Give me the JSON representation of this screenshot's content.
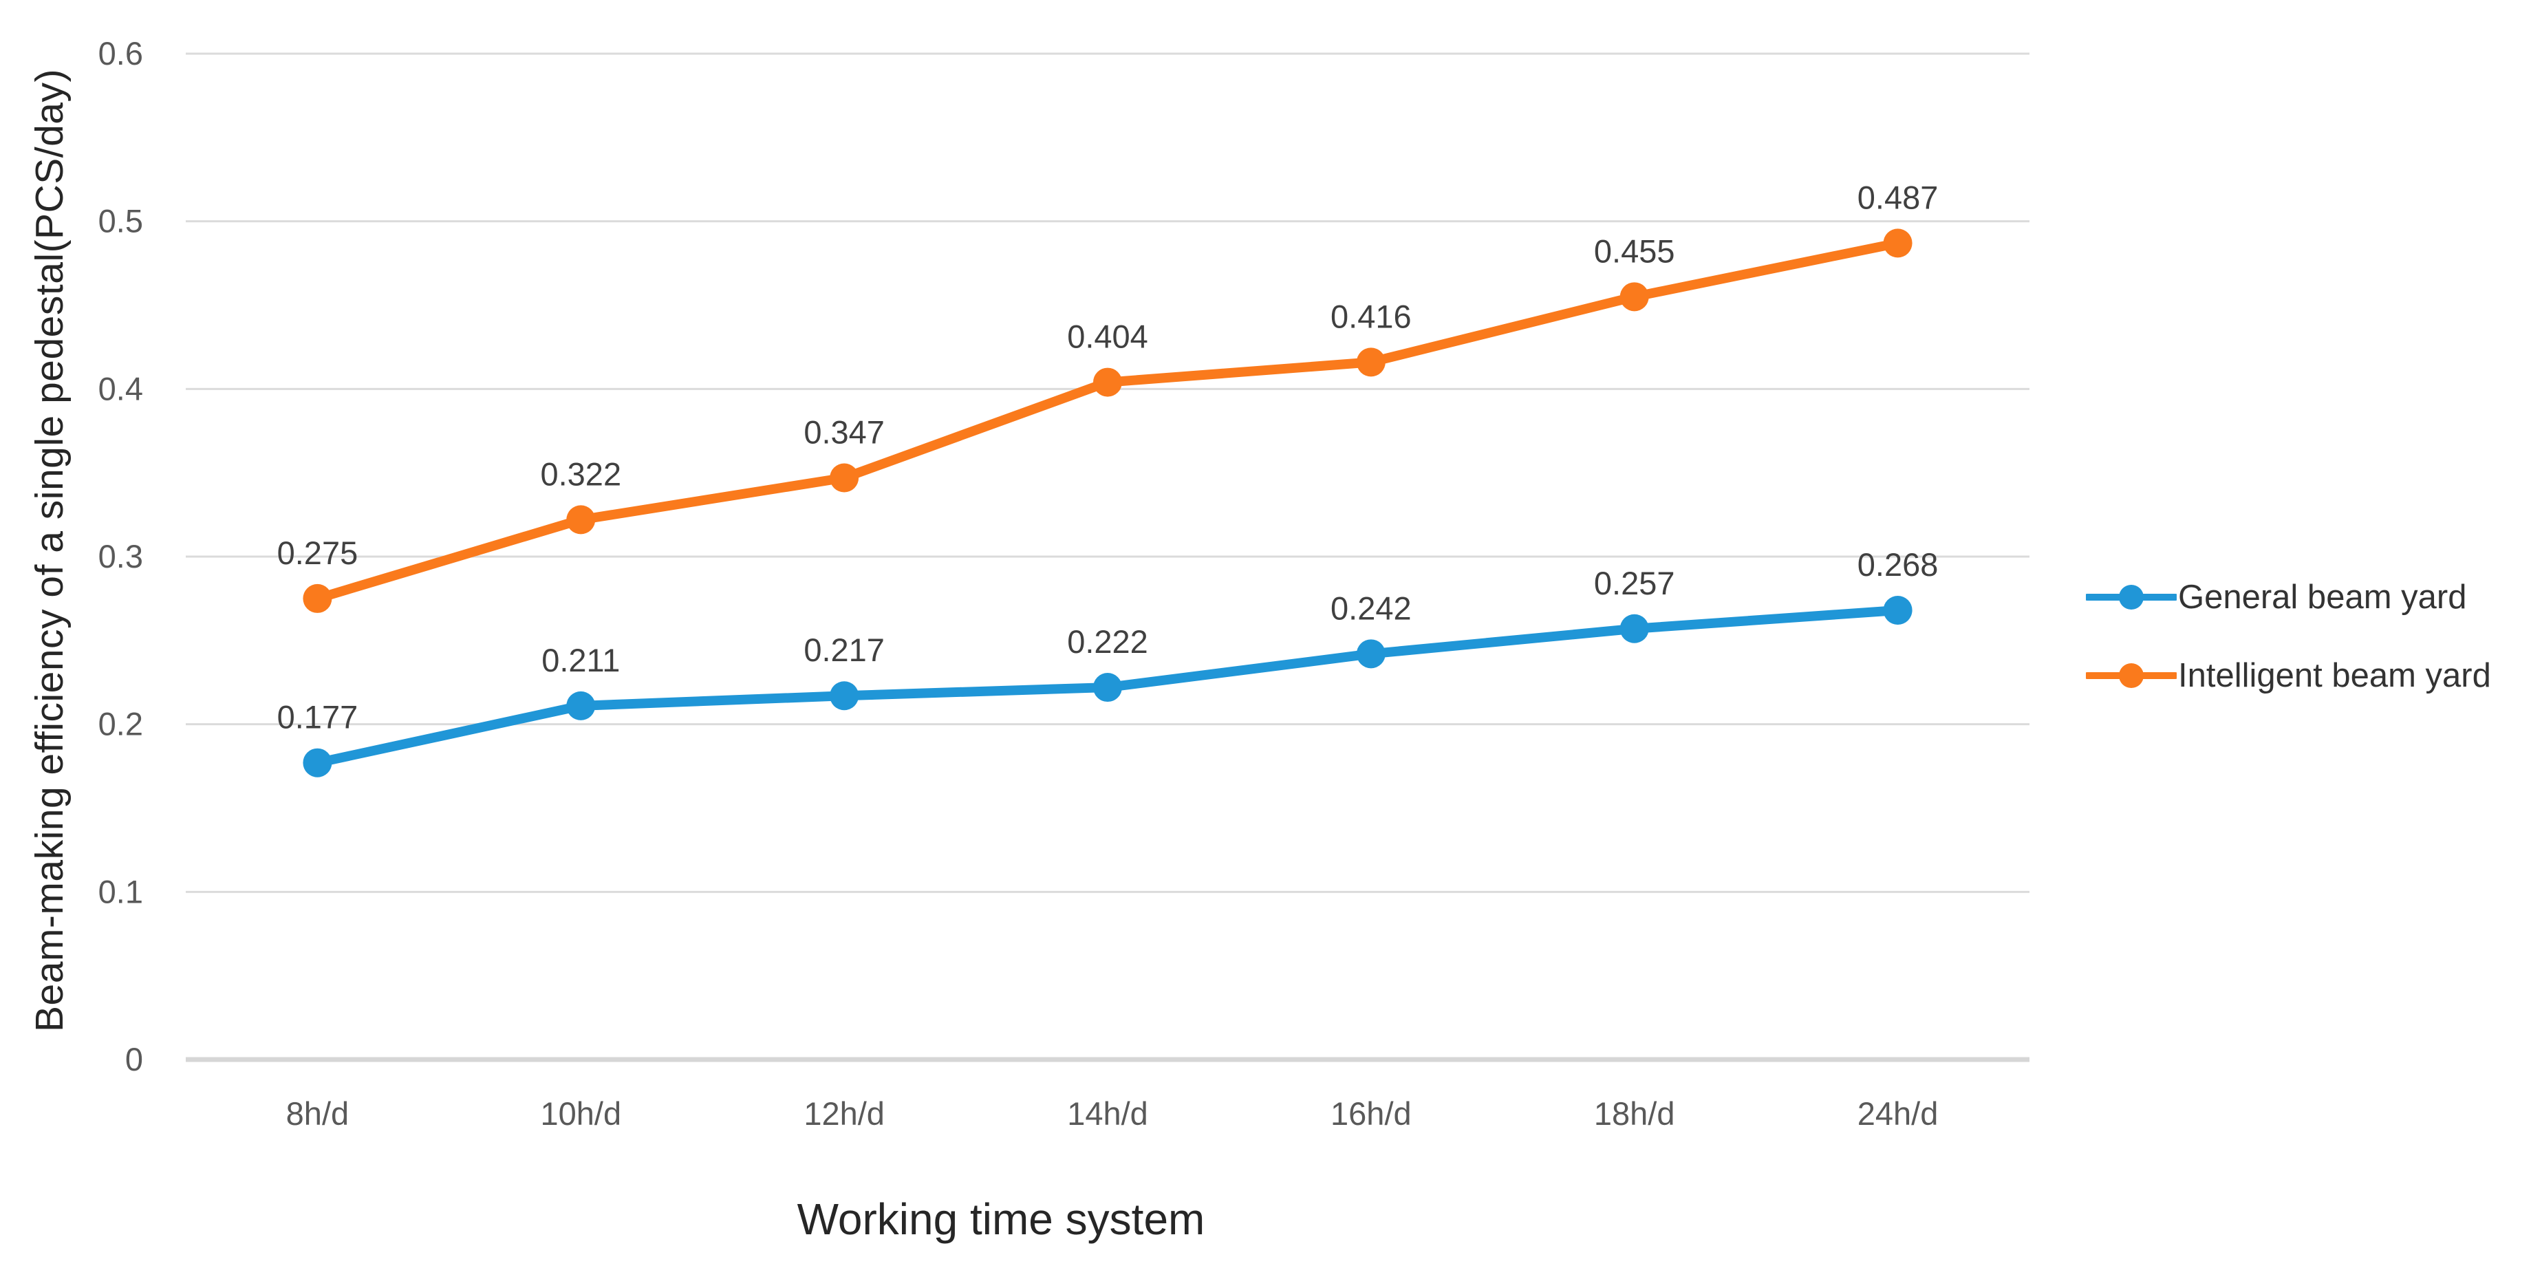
{
  "figure": {
    "background": "#ffffff"
  },
  "chart_data": {
    "type": "line",
    "title": "",
    "xlabel": "Working time system",
    "ylabel": "Beam-making efficiency of a single pedestal(PCS/day)",
    "categories": [
      "8h/d",
      "10h/d",
      "12h/d",
      "14h/d",
      "16h/d",
      "18h/d",
      "24h/d"
    ],
    "series": [
      {
        "name": "General beam yard",
        "color": "#2096D7",
        "values": [
          0.177,
          0.211,
          0.217,
          0.222,
          0.242,
          0.257,
          0.268
        ]
      },
      {
        "name": "Intelligent beam yard",
        "color": "#FA7A1C",
        "values": [
          0.275,
          0.322,
          0.347,
          0.404,
          0.416,
          0.455,
          0.487
        ]
      }
    ],
    "ylim": [
      0,
      0.6
    ],
    "yticks": [
      0,
      0.1,
      0.2,
      0.3,
      0.4,
      0.5,
      0.6
    ],
    "ytick_labels": [
      "0",
      "0.1",
      "0.2",
      "0.3",
      "0.4",
      "0.5",
      "0.6"
    ],
    "grid": true,
    "data_labels": true,
    "legend_position": "right",
    "marker": "circle",
    "colors": {
      "gridline": "#DBDBDB",
      "axis_line": "#D6D6D6",
      "tick_label": "#595959",
      "data_label": "#404040",
      "axis_title": "#262626",
      "legend_label": "#333333"
    }
  }
}
